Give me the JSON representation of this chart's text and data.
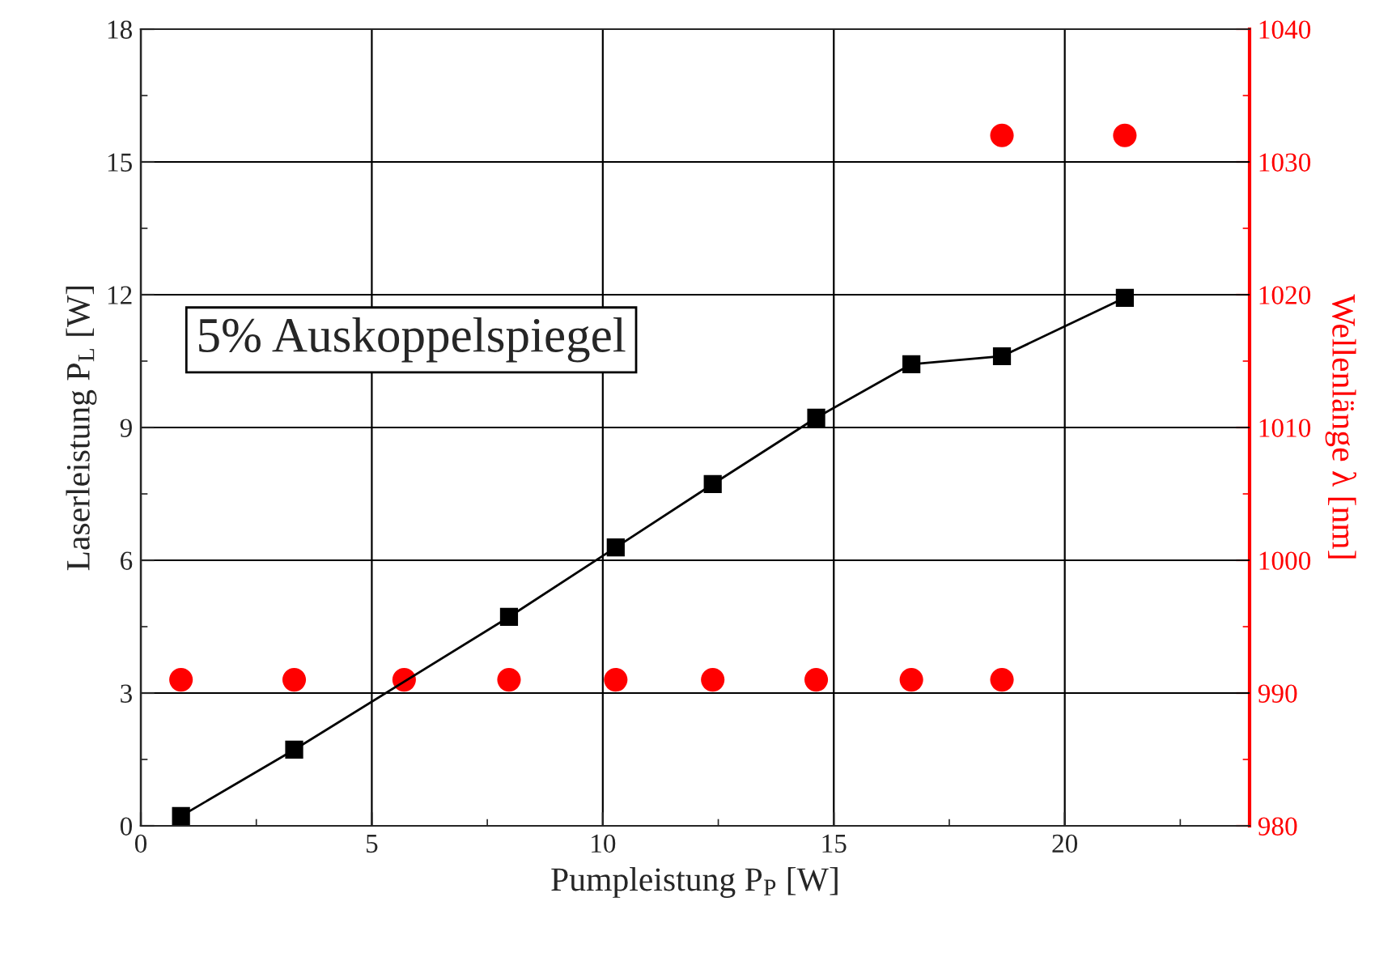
{
  "chart_data": {
    "type": "scatter",
    "xlabel": "Pumpleistung P$_{P}$ [W]",
    "ylabel": "Laserleistung P$_{L}$ [W]",
    "y2label": "Wellenlänge λ [nm]",
    "annotations": [
      "5% Auskoppelspiegel"
    ],
    "series": [
      {
        "type": "line",
        "marker": "square",
        "color": "#000000",
        "x": [
          0.87,
          3.32,
          7.97,
          10.28,
          12.38,
          14.62,
          16.68,
          18.64,
          21.3
        ],
        "values": [
          0.22,
          1.72,
          4.72,
          6.29,
          7.72,
          9.22,
          10.43,
          10.61,
          11.93
        ]
      },
      {
        "marker": "circle",
        "axis": "y2",
        "color": "#ff0000",
        "x": [
          0.87,
          3.32,
          5.7,
          7.97,
          10.28,
          12.38,
          14.62,
          16.68,
          18.64,
          18.64,
          21.3
        ],
        "values": [
          991,
          991,
          991,
          991,
          991,
          991,
          991,
          991,
          991,
          1032,
          1032
        ]
      }
    ],
    "xlim": [
      0,
      24
    ],
    "xticks": [
      0,
      5,
      10,
      15,
      20
    ],
    "ylim": [
      0,
      18
    ],
    "yticks": [
      0,
      3,
      6,
      9,
      12,
      15,
      18
    ],
    "y2lim": [
      980,
      1040
    ],
    "y2ticks": [
      980,
      990,
      1000,
      1010,
      1020,
      1030,
      1040
    ],
    "grid": true,
    "legend": false
  }
}
